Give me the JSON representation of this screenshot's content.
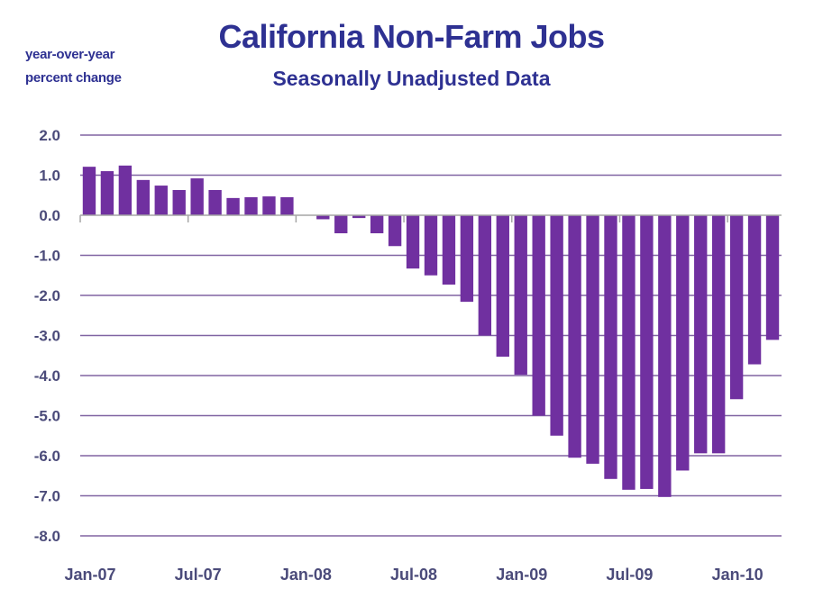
{
  "chart_data": {
    "type": "bar",
    "title": "California Non-Farm Jobs",
    "subtitle": "Seasonally Unadjusted Data",
    "ylabel_lines": [
      "year-over-year",
      "percent change"
    ],
    "xlabel": "",
    "ylim": [
      -8.0,
      2.0
    ],
    "yticks": [
      2.0,
      1.0,
      0.0,
      -1.0,
      -2.0,
      -3.0,
      -4.0,
      -5.0,
      -6.0,
      -7.0,
      -8.0
    ],
    "ytick_labels": [
      "2.0",
      "1.0",
      "0.0",
      "-1.0",
      "-2.0",
      "-3.0",
      "-4.0",
      "-5.0",
      "-6.0",
      "-7.0",
      "-8.0"
    ],
    "grid": true,
    "legend": "none",
    "categories": [
      "Jan-07",
      "Feb-07",
      "Mar-07",
      "Apr-07",
      "May-07",
      "Jun-07",
      "Jul-07",
      "Aug-07",
      "Sep-07",
      "Oct-07",
      "Nov-07",
      "Dec-07",
      "Jan-08",
      "Feb-08",
      "Mar-08",
      "Apr-08",
      "May-08",
      "Jun-08",
      "Jul-08",
      "Aug-08",
      "Sep-08",
      "Oct-08",
      "Nov-08",
      "Dec-08",
      "Jan-09",
      "Feb-09",
      "Mar-09",
      "Apr-09",
      "May-09",
      "Jun-09",
      "Jul-09",
      "Aug-09",
      "Sep-09",
      "Oct-09",
      "Nov-09",
      "Dec-09",
      "Jan-10",
      "Feb-10",
      "Mar-10"
    ],
    "xtick_labels": [
      "Jan-07",
      "Jul-07",
      "Jan-08",
      "Jul-08",
      "Jan-09",
      "Jul-09",
      "Jan-10"
    ],
    "series": [
      {
        "name": "Year-over-year percent change",
        "color": "#7030A0",
        "values": [
          1.21,
          1.1,
          1.24,
          0.88,
          0.74,
          0.63,
          0.92,
          0.63,
          0.43,
          0.45,
          0.47,
          0.45,
          0.0,
          -0.1,
          -0.45,
          -0.07,
          -0.45,
          -0.77,
          -1.33,
          -1.5,
          -1.73,
          -2.16,
          -3.0,
          -3.53,
          -3.98,
          -5.0,
          -5.5,
          -6.05,
          -6.2,
          -6.58,
          -6.85,
          -6.83,
          -7.03,
          -6.37,
          -5.94,
          -5.94,
          -4.59,
          -3.72,
          -3.11
        ]
      }
    ]
  },
  "colors": {
    "bar": "#7030A0",
    "gridline": "#8064A2",
    "axis": "#A6A6A6",
    "title": "#2E3192",
    "tick_label": "#4B4B7A"
  }
}
